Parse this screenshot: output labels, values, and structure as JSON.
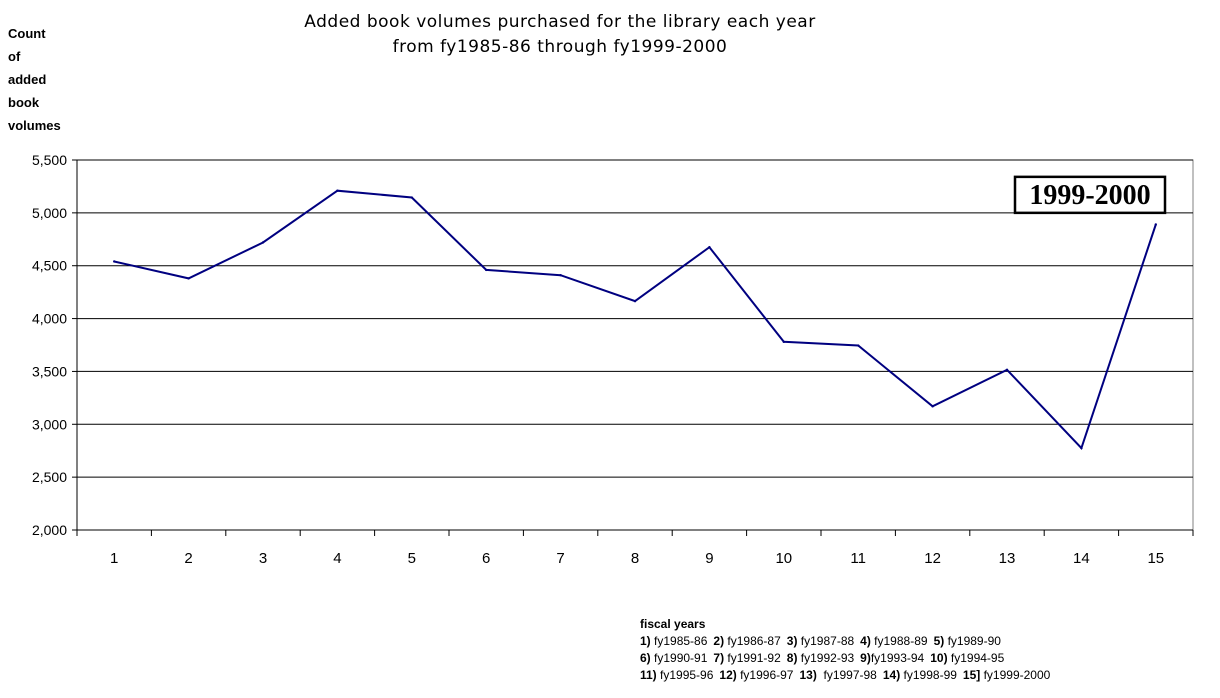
{
  "chart_data": {
    "type": "line",
    "title_line1": "Added book volumes purchased for the library each year",
    "title_line2": "from fy1985-86 through fy1999-2000",
    "ylabel_lines": [
      "Count",
      "of",
      "added",
      "book",
      "volumes"
    ],
    "xlabel": "fiscal years",
    "categories": [
      "1",
      "2",
      "3",
      "4",
      "5",
      "6",
      "7",
      "8",
      "9",
      "10",
      "11",
      "12",
      "13",
      "14",
      "15"
    ],
    "series": [
      {
        "values": [
          4540,
          4380,
          4720,
          5210,
          5145,
          4460,
          4410,
          4165,
          4675,
          3780,
          3745,
          3170,
          3515,
          2775,
          4890
        ]
      }
    ],
    "ylim": [
      2000,
      5500
    ],
    "yticks": [
      {
        "value": 5500,
        "label": "5,500"
      },
      {
        "value": 5000,
        "label": "5,000"
      },
      {
        "value": 4500,
        "label": "4,500"
      },
      {
        "value": 4000,
        "label": "4,000"
      },
      {
        "value": 3500,
        "label": "3,500"
      },
      {
        "value": 3000,
        "label": "3,000"
      },
      {
        "value": 2500,
        "label": "2,500"
      },
      {
        "value": 2000,
        "label": "2,000"
      }
    ],
    "grid": true,
    "line_color": "#000080",
    "annotation": "1999-2000",
    "legend_rows": [
      [
        {
          "num": "1)",
          "text": " fy1985-86"
        },
        {
          "num": "2)",
          "text": " fy1986-87"
        },
        {
          "num": "3)",
          "text": " fy1987-88"
        },
        {
          "num": "4)",
          "text": " fy1988-89"
        },
        {
          "num": "5)",
          "text": " fy1989-90"
        }
      ],
      [
        {
          "num": "6)",
          "text": " fy1990-91"
        },
        {
          "num": "7)",
          "text": " fy1991-92"
        },
        {
          "num": "8)",
          "text": " fy1992-93"
        },
        {
          "num": "9)",
          "text": "fy1993-94"
        },
        {
          "num": "10)",
          "text": " fy1994-95"
        }
      ],
      [
        {
          "num": "11)",
          "text": " fy1995-96"
        },
        {
          "num": "12)",
          "text": " fy1996-97"
        },
        {
          "num": "13)",
          "text": "  fy1997-98"
        },
        {
          "num": "14)",
          "text": " fy1998-99"
        },
        {
          "num": "15]",
          "text": " fy1999-2000"
        }
      ]
    ]
  }
}
